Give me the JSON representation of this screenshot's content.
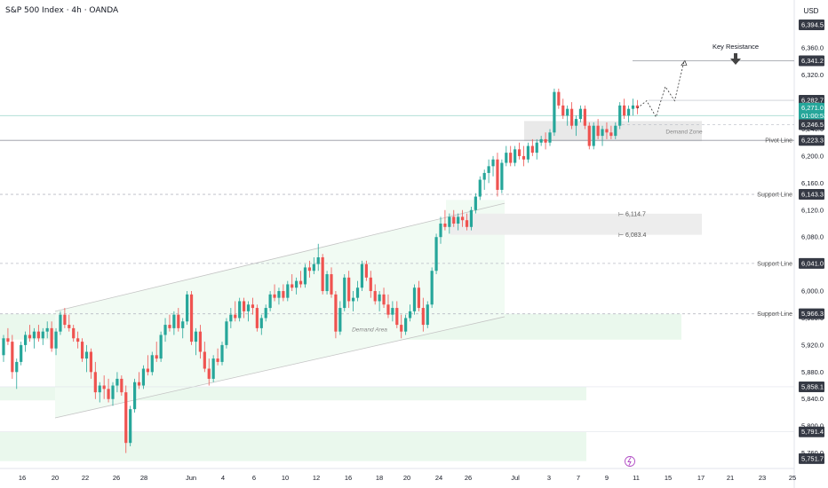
{
  "header": {
    "title": "S&P 500 Index · 4h · OANDA",
    "currency": "USD"
  },
  "chart_data": {
    "type": "candlestick",
    "symbol": "S&P 500 Index",
    "interval": "4h",
    "source": "OANDA",
    "currency": "USD",
    "ylim": [
      5745,
      6405
    ],
    "y_ticks": [
      6360.0,
      6320.0,
      6280.0,
      6240.0,
      6200.0,
      6160.0,
      6120.0,
      6080.0,
      6040.0,
      6000.0,
      5960.0,
      5920.0,
      5880.0,
      5840.0,
      5800.0,
      5760.0
    ],
    "x_ticks": [
      "16",
      "20",
      "22",
      "26",
      "28",
      "Jun",
      "4",
      "6",
      "10",
      "12",
      "16",
      "18",
      "20",
      "24",
      "26",
      "Jul",
      "3",
      "7",
      "9",
      "11",
      "15",
      "17",
      "21",
      "23",
      "25"
    ],
    "price_tags": [
      {
        "value": "6,394.5",
        "style": "dark"
      },
      {
        "value": "6,341.2",
        "style": "dark"
      },
      {
        "value": "6,282.7",
        "style": "dark"
      },
      {
        "value": "6,271.0",
        "countdown": "01:00:53",
        "style": "current"
      },
      {
        "value": "6,246.5",
        "style": "dark"
      },
      {
        "value": "6,223.3",
        "style": "dark"
      },
      {
        "value": "6,143.3",
        "style": "dark"
      },
      {
        "value": "6,041.0",
        "style": "dark"
      },
      {
        "value": "5,966.3",
        "style": "dark"
      },
      {
        "value": "5,858.1",
        "style": "dark"
      },
      {
        "value": "5,791.4",
        "style": "dark"
      },
      {
        "value": "5,751.7",
        "style": "dark"
      }
    ],
    "current_price": 6271.0,
    "levels": [
      {
        "label": "Pivot Line",
        "price": 6223.3
      },
      {
        "label": "Support Line",
        "price": 6143.3
      },
      {
        "label": "Support Line",
        "price": 6041.0
      },
      {
        "label": "Support Line",
        "price": 5966.3
      }
    ],
    "annotations": {
      "key_resistance": {
        "label": "Key Resistance",
        "price": 6341.2
      },
      "demand_zone": {
        "label": "Demand Zone",
        "low": 6222,
        "high": 6252
      },
      "demand_area": {
        "label": "Demand Area"
      },
      "gap_high": "6,114.7",
      "gap_low": "6,083.4"
    },
    "candles": [
      [
        5905,
        5935,
        5895,
        5930
      ],
      [
        5930,
        5945,
        5920,
        5925
      ],
      [
        5925,
        5935,
        5870,
        5880
      ],
      [
        5880,
        5900,
        5855,
        5895
      ],
      [
        5895,
        5925,
        5890,
        5920
      ],
      [
        5920,
        5940,
        5910,
        5935
      ],
      [
        5935,
        5950,
        5925,
        5930
      ],
      [
        5930,
        5945,
        5915,
        5940
      ],
      [
        5940,
        5950,
        5925,
        5930
      ],
      [
        5930,
        5945,
        5920,
        5940
      ],
      [
        5940,
        5955,
        5930,
        5945
      ],
      [
        5945,
        5955,
        5910,
        5915
      ],
      [
        5915,
        5945,
        5905,
        5940
      ],
      [
        5940,
        5970,
        5935,
        5965
      ],
      [
        5965,
        5975,
        5945,
        5950
      ],
      [
        5950,
        5965,
        5940,
        5945
      ],
      [
        5945,
        5950,
        5925,
        5930
      ],
      [
        5930,
        5940,
        5915,
        5925
      ],
      [
        5925,
        5930,
        5895,
        5900
      ],
      [
        5900,
        5920,
        5880,
        5910
      ],
      [
        5910,
        5915,
        5870,
        5880
      ],
      [
        5880,
        5895,
        5840,
        5850
      ],
      [
        5850,
        5865,
        5835,
        5860
      ],
      [
        5860,
        5875,
        5840,
        5855
      ],
      [
        5855,
        5870,
        5835,
        5840
      ],
      [
        5840,
        5865,
        5830,
        5860
      ],
      [
        5860,
        5880,
        5850,
        5870
      ],
      [
        5870,
        5875,
        5845,
        5850
      ],
      [
        5850,
        5860,
        5760,
        5775
      ],
      [
        5775,
        5830,
        5770,
        5825
      ],
      [
        5825,
        5870,
        5820,
        5865
      ],
      [
        5865,
        5880,
        5855,
        5860
      ],
      [
        5860,
        5890,
        5855,
        5885
      ],
      [
        5885,
        5905,
        5875,
        5880
      ],
      [
        5880,
        5910,
        5875,
        5905
      ],
      [
        5905,
        5925,
        5895,
        5900
      ],
      [
        5900,
        5940,
        5895,
        5935
      ],
      [
        5935,
        5960,
        5925,
        5950
      ],
      [
        5950,
        5965,
        5940,
        5945
      ],
      [
        5945,
        5970,
        5935,
        5965
      ],
      [
        5965,
        5975,
        5940,
        5945
      ],
      [
        5945,
        5960,
        5930,
        5955
      ],
      [
        5955,
        6000,
        5950,
        5995
      ],
      [
        5995,
        6000,
        5920,
        5925
      ],
      [
        5925,
        5945,
        5905,
        5940
      ],
      [
        5940,
        5950,
        5900,
        5910
      ],
      [
        5910,
        5925,
        5880,
        5885
      ],
      [
        5885,
        5900,
        5860,
        5870
      ],
      [
        5870,
        5905,
        5865,
        5900
      ],
      [
        5900,
        5915,
        5890,
        5895
      ],
      [
        5895,
        5925,
        5890,
        5920
      ],
      [
        5920,
        5960,
        5915,
        5955
      ],
      [
        5955,
        5975,
        5945,
        5965
      ],
      [
        5965,
        5985,
        5955,
        5960
      ],
      [
        5960,
        5990,
        5955,
        5985
      ],
      [
        5985,
        5990,
        5960,
        5970
      ],
      [
        5970,
        5985,
        5955,
        5980
      ],
      [
        5980,
        5990,
        5965,
        5975
      ],
      [
        5975,
        5980,
        5940,
        5945
      ],
      [
        5945,
        5965,
        5935,
        5960
      ],
      [
        5960,
        5980,
        5955,
        5975
      ],
      [
        5975,
        6000,
        5970,
        5995
      ],
      [
        5995,
        6010,
        5985,
        5990
      ],
      [
        5990,
        6005,
        5980,
        6000
      ],
      [
        6000,
        6010,
        5985,
        5990
      ],
      [
        5990,
        6015,
        5985,
        6010
      ],
      [
        6010,
        6025,
        6000,
        6005
      ],
      [
        6005,
        6020,
        5995,
        6015
      ],
      [
        6015,
        6030,
        6005,
        6010
      ],
      [
        6010,
        6040,
        6005,
        6035
      ],
      [
        6035,
        6045,
        6020,
        6030
      ],
      [
        6030,
        6050,
        6025,
        6040
      ],
      [
        6040,
        6070,
        6030,
        6050
      ],
      [
        6050,
        6055,
        5995,
        6000
      ],
      [
        6000,
        6030,
        5995,
        6025
      ],
      [
        6025,
        6035,
        5990,
        5995
      ],
      [
        5995,
        6000,
        5930,
        5940
      ],
      [
        5940,
        5985,
        5935,
        5975
      ],
      [
        5975,
        6025,
        5970,
        6020
      ],
      [
        6020,
        6030,
        5975,
        5985
      ],
      [
        5985,
        6000,
        5970,
        5990
      ],
      [
        5990,
        6015,
        5985,
        6005
      ],
      [
        6005,
        6045,
        6000,
        6040
      ],
      [
        6040,
        6045,
        6015,
        6020
      ],
      [
        6020,
        6030,
        5990,
        6000
      ],
      [
        6000,
        6010,
        5980,
        5985
      ],
      [
        5985,
        6000,
        5970,
        5995
      ],
      [
        5995,
        6005,
        5975,
        5980
      ],
      [
        5980,
        5995,
        5960,
        5965
      ],
      [
        5965,
        5985,
        5955,
        5975
      ],
      [
        5975,
        5985,
        5945,
        5950
      ],
      [
        5950,
        5965,
        5930,
        5940
      ],
      [
        5940,
        5965,
        5935,
        5960
      ],
      [
        5960,
        5980,
        5955,
        5970
      ],
      [
        5970,
        6010,
        5965,
        6005
      ],
      [
        6005,
        6015,
        5970,
        5975
      ],
      [
        5975,
        5990,
        5940,
        5950
      ],
      [
        5950,
        5985,
        5945,
        5980
      ],
      [
        5980,
        6035,
        5975,
        6030
      ],
      [
        6030,
        6085,
        6025,
        6080
      ],
      [
        6080,
        6110,
        6070,
        6100
      ],
      [
        6100,
        6120,
        6090,
        6095
      ],
      [
        6095,
        6115,
        6085,
        6110
      ],
      [
        6110,
        6120,
        6095,
        6100
      ],
      [
        6100,
        6115,
        6090,
        6110
      ],
      [
        6110,
        6120,
        6095,
        6105
      ],
      [
        6105,
        6115,
        6090,
        6095
      ],
      [
        6095,
        6125,
        6090,
        6120
      ],
      [
        6120,
        6145,
        6115,
        6140
      ],
      [
        6140,
        6170,
        6135,
        6165
      ],
      [
        6165,
        6180,
        6150,
        6175
      ],
      [
        6175,
        6195,
        6160,
        6185
      ],
      [
        6185,
        6200,
        6170,
        6195
      ],
      [
        6195,
        6205,
        6140,
        6150
      ],
      [
        6150,
        6195,
        6145,
        6190
      ],
      [
        6190,
        6215,
        6185,
        6205
      ],
      [
        6205,
        6215,
        6185,
        6190
      ],
      [
        6190,
        6215,
        6185,
        6210
      ],
      [
        6210,
        6220,
        6195,
        6200
      ],
      [
        6200,
        6215,
        6185,
        6195
      ],
      [
        6195,
        6220,
        6190,
        6215
      ],
      [
        6215,
        6225,
        6200,
        6205
      ],
      [
        6205,
        6225,
        6195,
        6220
      ],
      [
        6220,
        6230,
        6215,
        6225
      ],
      [
        6225,
        6235,
        6210,
        6220
      ],
      [
        6220,
        6240,
        6215,
        6235
      ],
      [
        6235,
        6300,
        6230,
        6295
      ],
      [
        6295,
        6300,
        6270,
        6275
      ],
      [
        6275,
        6285,
        6255,
        6260
      ],
      [
        6260,
        6275,
        6245,
        6270
      ],
      [
        6270,
        6280,
        6240,
        6245
      ],
      [
        6245,
        6260,
        6230,
        6255
      ],
      [
        6255,
        6275,
        6250,
        6270
      ],
      [
        6270,
        6275,
        6240,
        6245
      ],
      [
        6245,
        6250,
        6210,
        6215
      ],
      [
        6215,
        6250,
        6210,
        6245
      ],
      [
        6245,
        6255,
        6225,
        6230
      ],
      [
        6230,
        6245,
        6215,
        6240
      ],
      [
        6240,
        6250,
        6225,
        6235
      ],
      [
        6235,
        6245,
        6225,
        6230
      ],
      [
        6230,
        6250,
        6225,
        6245
      ],
      [
        6245,
        6280,
        6240,
        6275
      ],
      [
        6275,
        6285,
        6255,
        6260
      ],
      [
        6260,
        6275,
        6250,
        6270
      ],
      [
        6270,
        6285,
        6260,
        6275
      ],
      [
        6275,
        6283,
        6262,
        6271
      ]
    ],
    "projection": [
      6271,
      6282,
      6258,
      6303,
      6282,
      6340
    ]
  }
}
